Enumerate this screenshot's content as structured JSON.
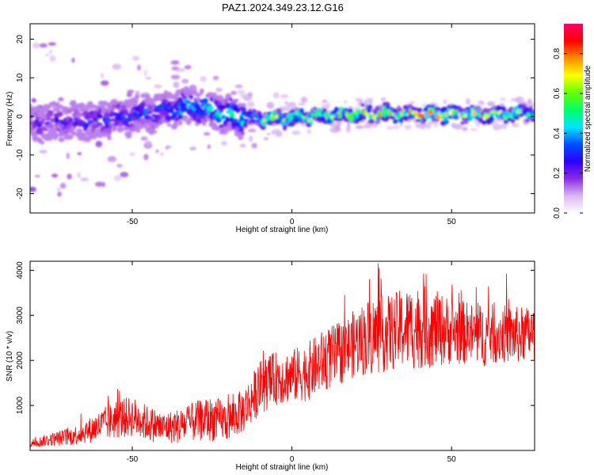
{
  "title": "PAZ1.2024.349.23.12.G16",
  "chart_data": [
    {
      "type": "heatmap",
      "xlabel": "Height of straight line (km)",
      "ylabel": "Frequency (Hz)",
      "xlim": [
        -82,
        76
      ],
      "ylim": [
        -25,
        24
      ],
      "xticks": [
        -50,
        0,
        50
      ],
      "yticks": [
        -20,
        -10,
        0,
        10,
        20
      ],
      "colorbar": {
        "label": "Normalized spectral amplitude",
        "range": [
          0.0,
          0.95
        ],
        "ticks": [
          0.0,
          0.2,
          0.4,
          0.6,
          0.8
        ],
        "colors": [
          "#ffffff",
          "#d9b8f0",
          "#8a2be2",
          "#2b00ff",
          "#0050ff",
          "#00e5ff",
          "#00ff66",
          "#66ff00",
          "#ffff00",
          "#ff8c00",
          "#ff0000",
          "#ff0066"
        ]
      },
      "ridge": [
        {
          "x": -75,
          "f": -1.5,
          "amp": 0.25
        },
        {
          "x": -60,
          "f": -1.0,
          "amp": 0.3
        },
        {
          "x": -45,
          "f": 1.0,
          "amp": 0.35
        },
        {
          "x": -30,
          "f": 2.5,
          "amp": 0.45
        },
        {
          "x": -15,
          "f": -0.5,
          "amp": 0.55
        },
        {
          "x": 0,
          "f": -0.5,
          "amp": 0.75
        },
        {
          "x": 15,
          "f": 0.5,
          "amp": 0.7
        },
        {
          "x": 30,
          "f": 0.8,
          "amp": 0.85
        },
        {
          "x": 45,
          "f": 0.5,
          "amp": 0.8
        },
        {
          "x": 60,
          "f": 0.5,
          "amp": 0.75
        },
        {
          "x": 75,
          "f": 0.8,
          "amp": 0.7
        }
      ]
    },
    {
      "type": "line",
      "xlabel": "Height of straight line (km)",
      "ylabel": "SNR (10 * v/v)",
      "xlim": [
        -82,
        76
      ],
      "ylim": [
        0,
        4200
      ],
      "xticks": [
        -50,
        0,
        50
      ],
      "yticks": [
        1000,
        2000,
        3000,
        4000
      ],
      "color": "#ff0000",
      "series": [
        {
          "x": [
            -82,
            -75,
            -70,
            -65,
            -60,
            -55,
            -50,
            -45,
            -40,
            -35,
            -30,
            -25,
            -20,
            -15,
            -10,
            -5,
            0,
            5,
            10,
            15,
            20,
            25,
            30,
            35,
            40,
            45,
            50,
            55,
            60,
            65,
            70,
            76
          ],
          "values": [
            150,
            250,
            300,
            400,
            550,
            700,
            750,
            600,
            500,
            550,
            650,
            700,
            650,
            900,
            1400,
            1600,
            1650,
            1750,
            2000,
            2150,
            2400,
            2550,
            2600,
            2700,
            2750,
            2700,
            2650,
            2600,
            2550,
            2600,
            2550,
            2600
          ],
          "spread": [
            100,
            150,
            200,
            250,
            350,
            450,
            450,
            400,
            350,
            400,
            450,
            500,
            450,
            500,
            600,
            600,
            600,
            650,
            700,
            700,
            750,
            900,
            850,
            900,
            950,
            850,
            750,
            700,
            700,
            650,
            650,
            600
          ]
        }
      ]
    }
  ]
}
